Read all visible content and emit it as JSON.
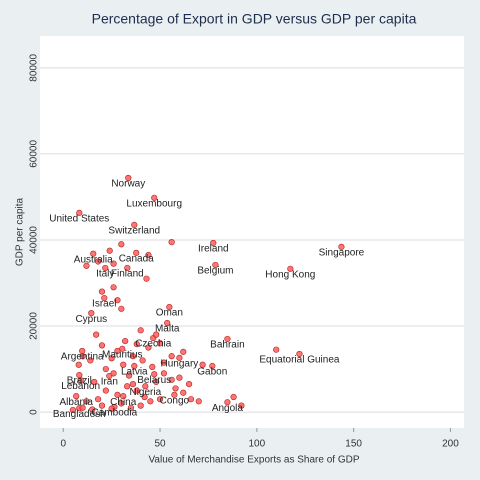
{
  "chart_data": {
    "type": "scatter",
    "title": "Percentage of Export in GDP versus GDP per capita",
    "xlabel": "Value of Merchandise Exports as Share of GDP",
    "ylabel": "GDP per capita",
    "color": "#ff5a5a",
    "grid": true,
    "xlim": [
      -12,
      207
    ],
    "xticks": [
      0,
      50,
      100,
      150,
      200
    ],
    "ylim": [
      -3700,
      87400
    ],
    "yticks": [
      0,
      20000,
      40000,
      60000,
      80000
    ],
    "labels": [
      "Norway",
      "Luxembourg",
      "United States",
      "Switzerland",
      "Ireland",
      "Singapore",
      "Australia",
      "Canada",
      "Belgium",
      "Hong Kong",
      "Italy",
      "Finland",
      "Israel",
      "Oman",
      "Cyprus",
      "Malta",
      "Bahrain",
      "Czechia",
      "Argentina",
      "Mauritius",
      "Equatorial Guinea",
      "Hungary",
      "Gabon",
      "Latvia",
      "Belarus",
      "Brazil",
      "Iran",
      "Lebanon",
      "Nigeria",
      "Albania",
      "China",
      "Congo",
      "Bangladesh",
      "Cambodia",
      "Angola",
      null,
      null,
      null,
      null,
      null,
      null,
      null,
      null,
      null,
      null,
      null,
      null,
      null,
      null,
      null,
      null,
      null,
      null,
      null,
      null,
      null,
      null,
      null,
      null,
      null,
      null,
      null,
      null,
      null,
      null,
      null,
      null,
      null,
      null,
      null,
      null,
      null,
      null,
      null,
      null,
      null,
      null,
      null,
      null,
      null,
      null,
      null,
      null,
      null,
      null,
      null,
      null,
      null,
      null,
      null,
      null,
      null,
      null,
      null,
      null,
      null,
      null,
      null,
      null,
      null,
      null
    ],
    "x": [
      33.6,
      47,
      8.3,
      36.7,
      77.5,
      143.7,
      15.5,
      37.7,
      78.6,
      117.3,
      21.7,
      33.1,
      21.2,
      54.8,
      14.5,
      53.7,
      84.8,
      46.5,
      9.8,
      30.5,
      122,
      60,
      77,
      36.7,
      47,
      8.3,
      23.8,
      9,
      42.4,
      6.7,
      31,
      57.4,
      8.3,
      26.4,
      84.8,
      5,
      10,
      15,
      20,
      25,
      30,
      35,
      40,
      45,
      50,
      12,
      18,
      22,
      28,
      33,
      38,
      42,
      48,
      52,
      58,
      62,
      66,
      70,
      88,
      92,
      16,
      26,
      31,
      36,
      41,
      44,
      50,
      56,
      62,
      20,
      14,
      8,
      72,
      48,
      40,
      10,
      25,
      28,
      26,
      30,
      20,
      12,
      18,
      26,
      24,
      30,
      44,
      56,
      36,
      60,
      65,
      22,
      34,
      46,
      110,
      43,
      17,
      32,
      52,
      56,
      28,
      38
    ],
    "values": [
      54400,
      49800,
      46300,
      43500,
      39300,
      38400,
      36800,
      37000,
      34200,
      33300,
      33500,
      33500,
      26500,
      24400,
      23000,
      20700,
      17000,
      17200,
      14200,
      14700,
      13500,
      12600,
      10700,
      10700,
      8800,
      8600,
      8400,
      7400,
      6000,
      3700,
      3700,
      4000,
      900,
      1200,
      2300,
      500,
      1000,
      600,
      1500,
      800,
      2000,
      1000,
      1500,
      2500,
      3000,
      2500,
      3000,
      5000,
      4000,
      6000,
      5000,
      3500,
      7000,
      9000,
      5500,
      4500,
      3000,
      2500,
      3500,
      1500,
      7000,
      9000,
      11000,
      13000,
      12000,
      15000,
      16000,
      13000,
      14000,
      15500,
      12000,
      11000,
      11000,
      18000,
      19000,
      13000,
      12500,
      26000,
      29000,
      24000,
      28000,
      34000,
      35000,
      34500,
      37500,
      39000,
      36500,
      39500,
      6500,
      8000,
      6500,
      10000,
      8500,
      10500,
      14500,
      31000,
      18000,
      16500,
      11500,
      7500,
      14200,
      15800
    ]
  }
}
